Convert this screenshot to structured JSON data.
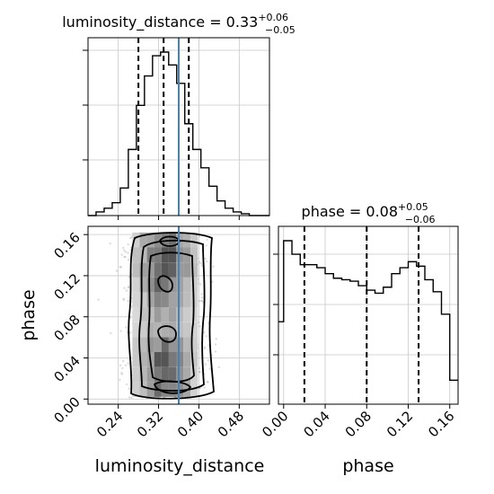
{
  "chart_data": {
    "type": "corner",
    "parameters": [
      "luminosity_distance",
      "phase"
    ],
    "truth": {
      "luminosity_distance": 0.36
    },
    "colors": {
      "hist": "#000000",
      "truth": "#4682b4",
      "grid": "#c8c8c8",
      "points": "#9a9a9a"
    },
    "grid": true,
    "titles": [
      {
        "param": "luminosity_distance",
        "main": "luminosity_distance = 0.33",
        "sup": "+0.06",
        "sub": "−0.05"
      },
      {
        "param": "phase",
        "main": "phase = 0.08",
        "sup": "+0.05",
        "sub": "−0.06"
      }
    ],
    "marginals": [
      {
        "param": "luminosity_distance",
        "x_range": [
          0.18,
          0.54
        ],
        "quantiles": [
          0.28,
          0.33,
          0.38
        ],
        "bin_edges": [
          0.18,
          0.196,
          0.212,
          0.228,
          0.244,
          0.26,
          0.276,
          0.292,
          0.308,
          0.324,
          0.34,
          0.356,
          0.372,
          0.388,
          0.404,
          0.42,
          0.436,
          0.452,
          0.468,
          0.484,
          0.5,
          0.54
        ],
        "counts": [
          0,
          2,
          4,
          7,
          15,
          36,
          60,
          76,
          87,
          89,
          82,
          72,
          50,
          36,
          26,
          16,
          8,
          4,
          2,
          1,
          0
        ]
      },
      {
        "param": "phase",
        "x_range": [
          -0.005,
          0.168
        ],
        "quantiles": [
          0.02,
          0.08,
          0.13
        ],
        "bin_edges": [
          -0.005,
          0.0,
          0.008,
          0.016,
          0.024,
          0.032,
          0.04,
          0.048,
          0.056,
          0.064,
          0.072,
          0.08,
          0.088,
          0.096,
          0.104,
          0.112,
          0.12,
          0.128,
          0.136,
          0.144,
          0.152,
          0.16,
          0.168
        ],
        "counts": [
          55,
          109,
          100,
          93,
          93,
          91,
          87,
          84,
          83,
          82,
          79,
          76,
          74,
          78,
          87,
          91,
          95,
          92,
          83,
          75,
          60,
          16
        ]
      }
    ],
    "joint": {
      "x": "luminosity_distance",
      "y": "phase",
      "x_range": [
        0.18,
        0.54
      ],
      "y_range": [
        -0.005,
        0.168
      ],
      "x_ticks": [
        "0.24",
        "0.32",
        "0.40",
        "0.48"
      ],
      "y_ticks": [
        "0.00",
        "0.04",
        "0.08",
        "0.12",
        "0.16"
      ],
      "phase_ticks": [
        "0.00",
        "0.04",
        "0.08",
        "0.12",
        "0.16"
      ]
    },
    "xlabels": [
      "luminosity_distance",
      "phase"
    ],
    "ylabels": [
      "phase"
    ]
  }
}
